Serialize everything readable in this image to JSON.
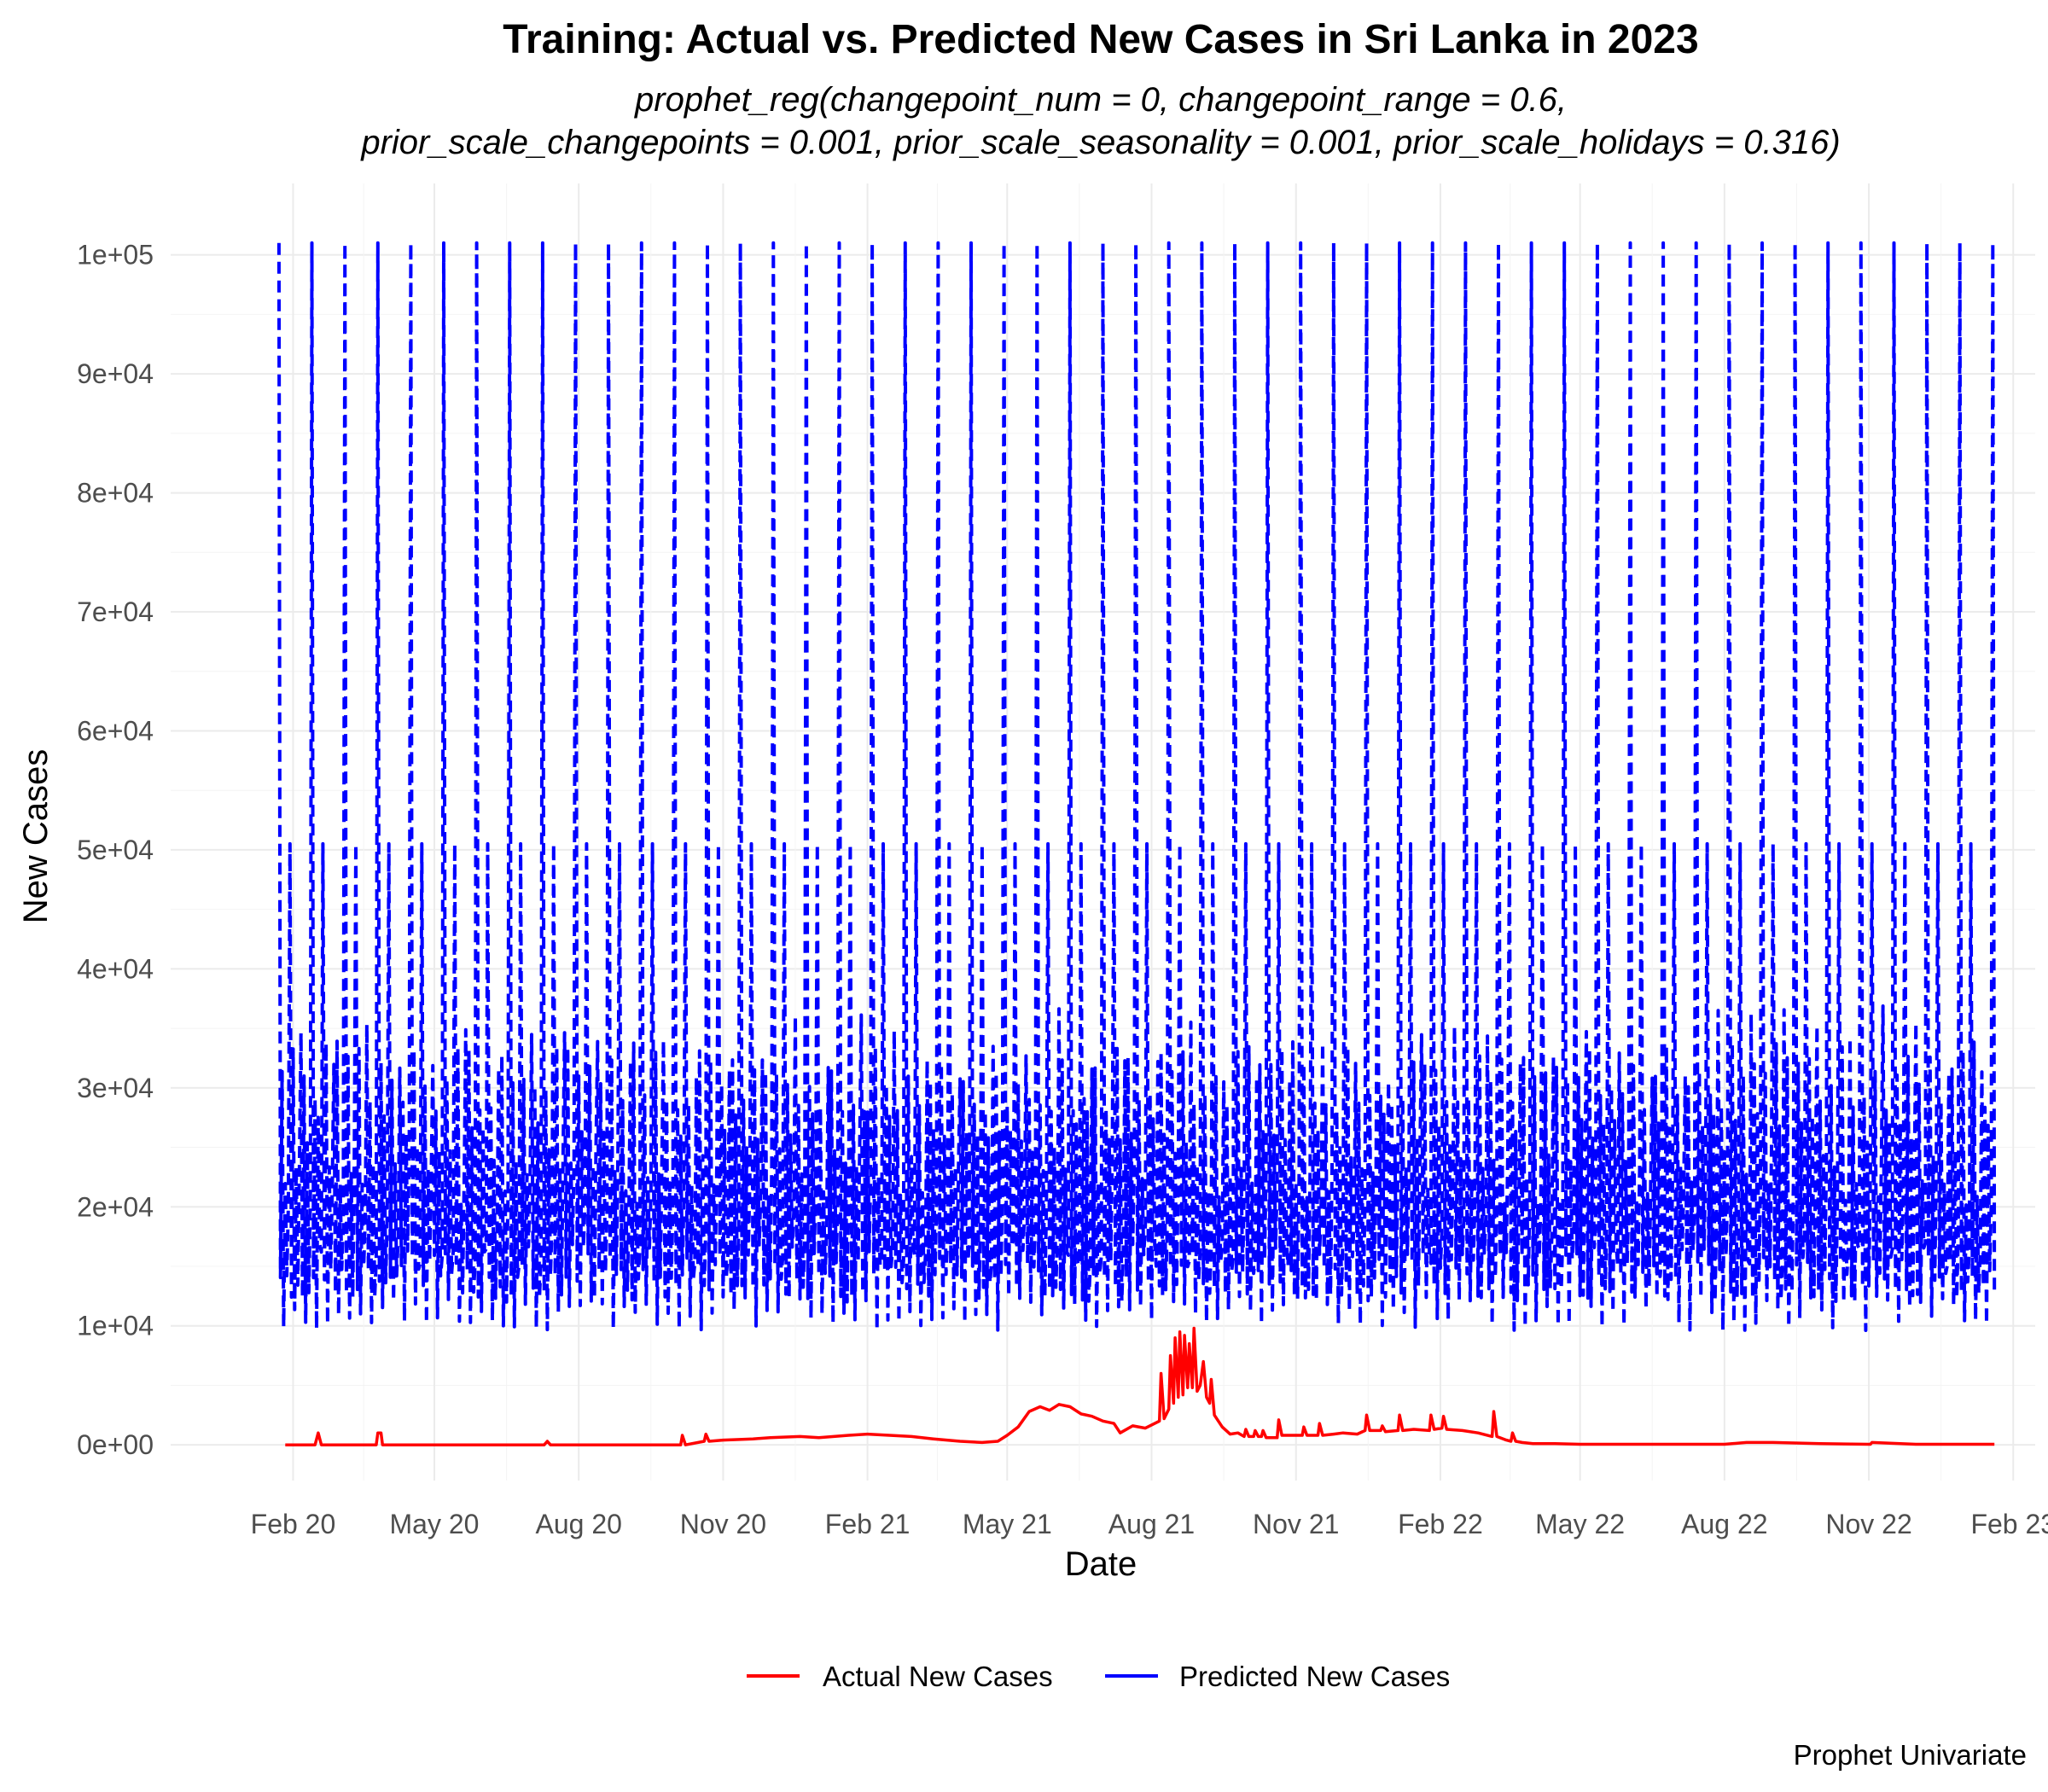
{
  "chart_data": {
    "type": "line",
    "title": "Training: Actual vs. Predicted New Cases in Sri Lanka in 2023",
    "subtitle_line1": "prophet_reg(changepoint_num = 0, changepoint_range = 0.6,",
    "subtitle_line2": "prior_scale_changepoints = 0.001, prior_scale_seasonality = 0.001, prior_scale_holidays = 0.316)",
    "caption": "Prophet Univariate",
    "xlabel": "Date",
    "ylabel": "New Cases",
    "x_ticks": [
      "Feb 20",
      "May 20",
      "Aug 20",
      "Nov 20",
      "Feb 21",
      "May 21",
      "Aug 21",
      "Nov 21",
      "Feb 22",
      "May 22",
      "Aug 22",
      "Nov 22",
      "Feb 23"
    ],
    "x_tick_dates": [
      "2020-02-01",
      "2020-05-01",
      "2020-08-01",
      "2020-11-01",
      "2021-02-01",
      "2021-05-01",
      "2021-08-01",
      "2021-11-01",
      "2022-02-01",
      "2022-05-01",
      "2022-08-01",
      "2022-11-01",
      "2023-02-01"
    ],
    "x_range": [
      "2019-11-15",
      "2023-02-15"
    ],
    "y_ticks": [
      0,
      10000,
      20000,
      30000,
      40000,
      50000,
      60000,
      70000,
      80000,
      90000,
      100000
    ],
    "y_tick_labels": [
      "0e+00",
      "1e+04",
      "2e+04",
      "3e+04",
      "4e+04",
      "5e+04",
      "6e+04",
      "7e+04",
      "8e+04",
      "9e+04",
      "1e+05"
    ],
    "ylim": [
      -3000,
      106000
    ],
    "grid": true,
    "legend_position": "bottom",
    "series": [
      {
        "name": "Actual New Cases",
        "color": "#ff0000",
        "line_style": "solid",
        "dates": [
          "2020-01-27",
          "2020-02-15",
          "2020-02-17",
          "2020-02-19",
          "2020-03-25",
          "2020-03-26",
          "2020-03-28",
          "2020-03-29",
          "2020-04-02",
          "2020-05-01",
          "2020-06-01",
          "2020-07-10",
          "2020-07-12",
          "2020-07-14",
          "2020-08-01",
          "2020-09-01",
          "2020-10-05",
          "2020-10-06",
          "2020-10-08",
          "2020-10-20",
          "2020-10-21",
          "2020-10-23",
          "2020-11-01",
          "2020-11-20",
          "2020-12-01",
          "2020-12-20",
          "2021-01-01",
          "2021-01-20",
          "2021-02-01",
          "2021-02-15",
          "2021-03-01",
          "2021-03-15",
          "2021-04-01",
          "2021-04-15",
          "2021-04-25",
          "2021-05-01",
          "2021-05-08",
          "2021-05-15",
          "2021-05-22",
          "2021-05-28",
          "2021-06-03",
          "2021-06-10",
          "2021-06-17",
          "2021-06-24",
          "2021-07-01",
          "2021-07-08",
          "2021-07-12",
          "2021-07-20",
          "2021-07-28",
          "2021-08-03",
          "2021-08-06",
          "2021-08-07",
          "2021-08-09",
          "2021-08-12",
          "2021-08-13",
          "2021-08-15",
          "2021-08-16",
          "2021-08-18",
          "2021-08-19",
          "2021-08-21",
          "2021-08-22",
          "2021-08-24",
          "2021-08-25",
          "2021-08-27",
          "2021-08-28",
          "2021-08-30",
          "2021-09-01",
          "2021-09-03",
          "2021-09-05",
          "2021-09-07",
          "2021-09-08",
          "2021-09-10",
          "2021-09-15",
          "2021-09-20",
          "2021-09-25",
          "2021-09-29",
          "2021-09-30",
          "2021-10-02",
          "2021-10-05",
          "2021-10-06",
          "2021-10-08",
          "2021-10-10",
          "2021-10-11",
          "2021-10-13",
          "2021-10-20",
          "2021-10-21",
          "2021-10-23",
          "2021-11-01",
          "2021-11-05",
          "2021-11-06",
          "2021-11-08",
          "2021-11-15",
          "2021-11-16",
          "2021-11-18",
          "2021-11-25",
          "2021-12-01",
          "2021-12-10",
          "2021-12-15",
          "2021-12-16",
          "2021-12-18",
          "2021-12-25",
          "2021-12-26",
          "2021-12-28",
          "2022-01-05",
          "2022-01-06",
          "2022-01-08",
          "2022-01-15",
          "2022-01-25",
          "2022-01-26",
          "2022-01-28",
          "2022-02-02",
          "2022-02-03",
          "2022-02-05",
          "2022-02-15",
          "2022-02-25",
          "2022-03-06",
          "2022-03-07",
          "2022-03-09",
          "2022-03-15",
          "2022-03-18",
          "2022-03-19",
          "2022-03-21",
          "2022-03-25",
          "2022-04-01",
          "2022-04-15",
          "2022-05-01",
          "2022-06-01",
          "2022-07-01",
          "2022-08-01",
          "2022-08-15",
          "2022-09-01",
          "2022-10-01",
          "2022-11-01",
          "2022-11-02",
          "2022-11-03",
          "2022-12-01",
          "2023-01-01",
          "2023-01-20"
        ],
        "values": [
          0,
          0,
          1000,
          0,
          0,
          1000,
          1000,
          0,
          0,
          0,
          0,
          0,
          300,
          0,
          0,
          0,
          0,
          800,
          0,
          300,
          900,
          300,
          400,
          500,
          600,
          700,
          600,
          800,
          900,
          800,
          700,
          500,
          300,
          200,
          300,
          800,
          1500,
          2800,
          3200,
          2900,
          3400,
          3200,
          2600,
          2400,
          2000,
          1800,
          1000,
          1600,
          1400,
          1800,
          2000,
          6000,
          2200,
          3000,
          7500,
          3500,
          9000,
          4000,
          9500,
          4200,
          9200,
          4800,
          8500,
          4800,
          9800,
          4500,
          5000,
          7000,
          4000,
          3500,
          5500,
          2500,
          1500,
          900,
          1000,
          700,
          1300,
          700,
          700,
          1200,
          700,
          700,
          1200,
          600,
          600,
          2100,
          800,
          800,
          800,
          1500,
          800,
          800,
          1800,
          800,
          900,
          1000,
          900,
          1200,
          2500,
          1200,
          1200,
          1600,
          1100,
          1200,
          2500,
          1200,
          1300,
          1200,
          2500,
          1300,
          1400,
          2400,
          1300,
          1200,
          1000,
          700,
          2800,
          700,
          400,
          300,
          1000,
          300,
          200,
          100,
          100,
          50,
          50,
          50,
          50,
          200,
          200,
          100,
          50,
          50,
          200,
          50,
          50,
          50
        ]
      },
      {
        "name": "Predicted New Cases",
        "color": "#0000ff",
        "line_style": "dashed",
        "start_date": "2020-01-23",
        "end_date": "2023-01-20",
        "pattern_period_days": 7,
        "peak_period_days": 21,
        "baseline": 9600,
        "weekly_peak_range": [
          30000,
          37000
        ],
        "secondary_peak": 50500,
        "primary_peak": 101000
      }
    ]
  }
}
